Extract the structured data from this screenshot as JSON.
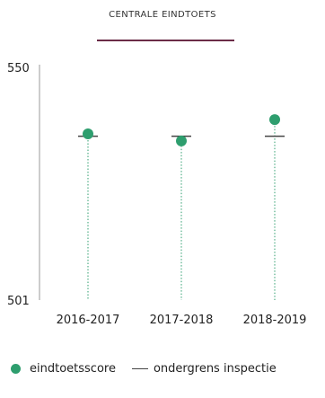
{
  "chart_data": {
    "type": "scatter",
    "title": "CENTRALE EINDTOETS",
    "ylim": [
      501,
      550
    ],
    "ytick_labels": [
      "550",
      "501"
    ],
    "categories": [
      "2016-2017",
      "2017-2018",
      "2018-2019"
    ],
    "series": [
      {
        "name": "eindtoetsscore",
        "values": [
          536.0,
          534.5,
          539.0
        ],
        "color": "#2e9e6e",
        "marker": "dot"
      },
      {
        "name": "ondergrens inspectie",
        "values": [
          535.5,
          535.5,
          535.5
        ],
        "color": "#444444",
        "marker": "dash"
      }
    ],
    "legend_position": "bottom-left",
    "grid": false
  }
}
